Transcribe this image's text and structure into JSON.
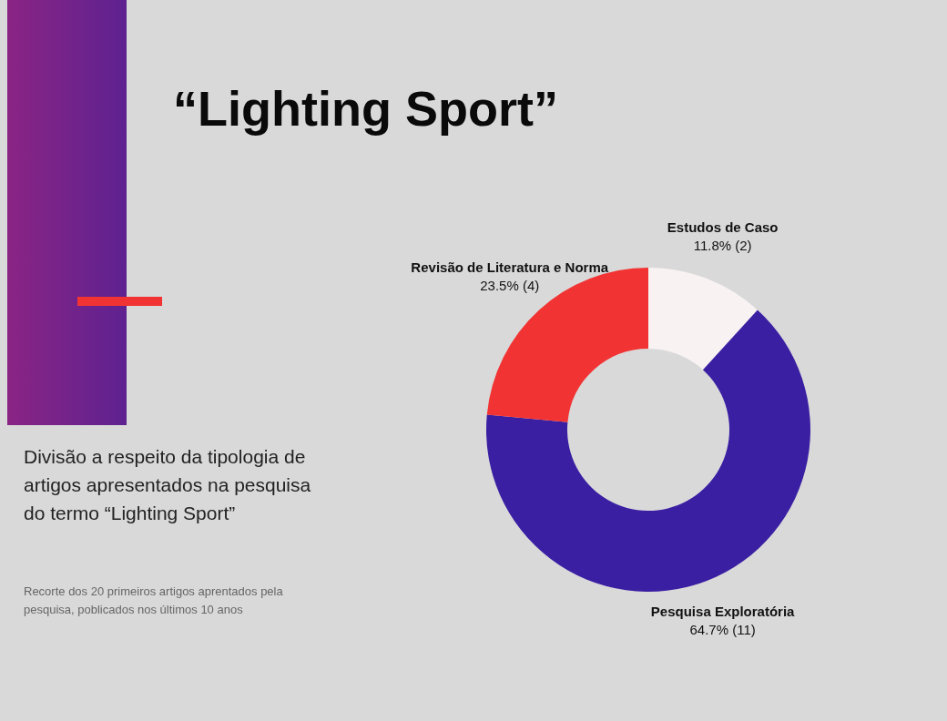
{
  "chart_data": {
    "type": "donut",
    "title": "“Lighting Sport”",
    "subtitle": "Divisão a respeito da tipologia de artigos apresentados na pesquisa do termo “Lighting Sport”",
    "annotations": [
      "Recorte dos 20 primeiros artigos aprentados pela pesquisa, poblicados nos últimos 10 anos"
    ],
    "categories": [
      "Estudos de Caso",
      "Pesquisa Exploratória",
      "Revisão de Literatura e Norma"
    ],
    "values": [
      2,
      11,
      4
    ],
    "value_labels": [
      "11.8% (2)",
      "64.7% (11)",
      "23.5% (4)"
    ],
    "colors": [
      "#f9f2f2",
      "#3a1fa3",
      "#f23333"
    ],
    "legend": false
  }
}
